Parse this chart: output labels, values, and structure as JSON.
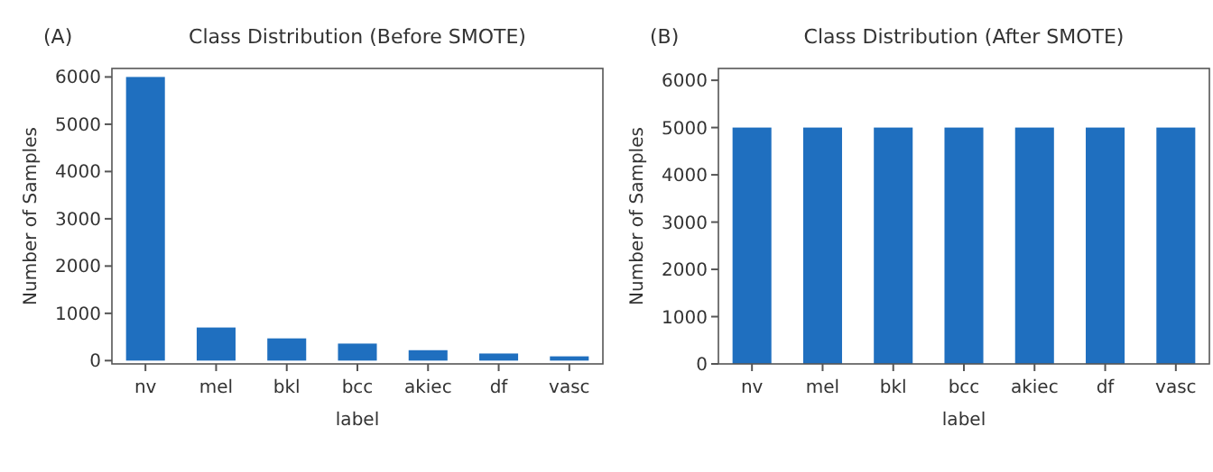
{
  "chart_data": [
    {
      "type": "bar",
      "title": "Class Distribution (Before SMOTE)",
      "annotations": [
        "(A)"
      ],
      "xlabel": "label",
      "ylabel": "Number of Samples",
      "categories": [
        "nv",
        "mel",
        "bkl",
        "bcc",
        "akiec",
        "df",
        "vasc"
      ],
      "values": [
        6000,
        700,
        470,
        360,
        220,
        150,
        90
      ],
      "color": "#1f6fbf",
      "ylim": [
        -70,
        6180
      ],
      "yticks": [
        0,
        1000,
        2000,
        3000,
        4000,
        5000,
        6000
      ],
      "grid": false
    },
    {
      "type": "bar",
      "title": "Class Distribution (After SMOTE)",
      "annotations": [
        "(B)"
      ],
      "xlabel": "label",
      "ylabel": "Number of Samples",
      "categories": [
        "nv",
        "mel",
        "bkl",
        "bcc",
        "akiec",
        "df",
        "vasc"
      ],
      "values": [
        5000,
        5000,
        5000,
        5000,
        5000,
        5000,
        5000
      ],
      "color": "#1f6fbf",
      "ylim": [
        0,
        6250
      ],
      "yticks": [
        0,
        1000,
        2000,
        3000,
        4000,
        5000,
        6000
      ],
      "grid": false
    }
  ]
}
